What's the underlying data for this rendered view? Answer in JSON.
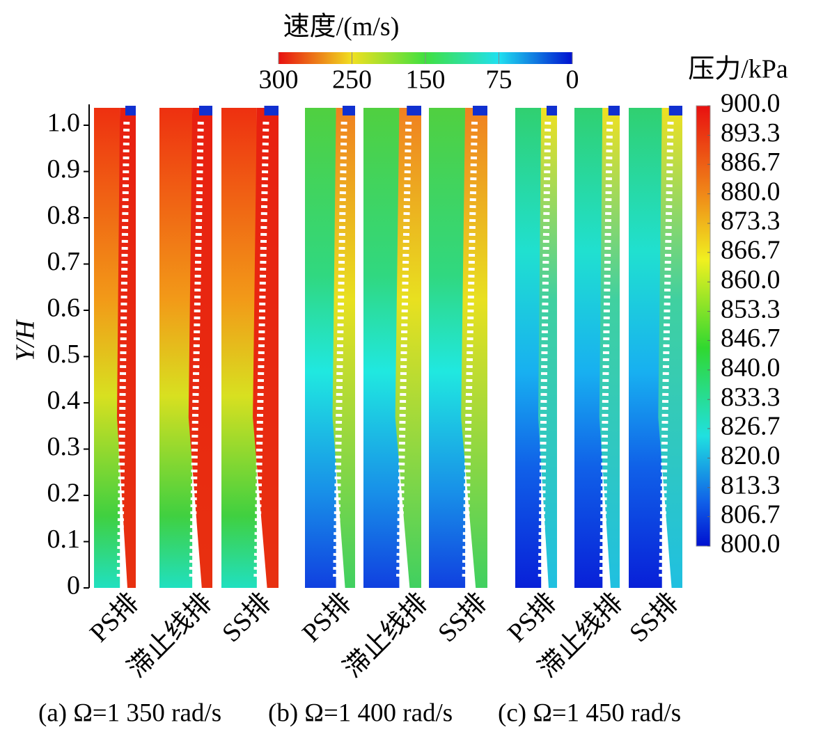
{
  "chart_data": {
    "type": "contour",
    "ylabel": "Y/H",
    "ylim": [
      0,
      1.04
    ],
    "yticks": [
      0,
      0.1,
      0.2,
      0.3,
      0.4,
      0.5,
      0.6,
      0.7,
      0.8,
      0.9,
      {
        "value": 1,
        "label": "1.0"
      }
    ],
    "velocity_colorbar": {
      "title": "速度/(m/s)",
      "ticks": [
        300,
        250,
        150,
        75,
        0
      ]
    },
    "pressure_colorbar": {
      "title": "压力/kPa",
      "lim": [
        800,
        900
      ],
      "ticks": [
        {
          "value": 900,
          "label": "900.0"
        },
        {
          "value": 893.3,
          "label": "893.3"
        },
        {
          "value": 886.7,
          "label": "886.7"
        },
        {
          "value": 880,
          "label": "880.0"
        },
        {
          "value": 873.3,
          "label": "873.3"
        },
        {
          "value": 866.7,
          "label": "866.7"
        },
        {
          "value": 860,
          "label": "860.0"
        },
        {
          "value": 853.3,
          "label": "853.3"
        },
        {
          "value": 846.7,
          "label": "846.7"
        },
        {
          "value": 840,
          "label": "840.0"
        },
        {
          "value": 833.3,
          "label": "833.3"
        },
        {
          "value": 826.7,
          "label": "826.7"
        },
        {
          "value": 820,
          "label": "820.0"
        },
        {
          "value": 813.3,
          "label": "813.3"
        },
        {
          "value": 806.7,
          "label": "806.7"
        },
        {
          "value": 800,
          "label": "800.0"
        }
      ]
    },
    "panels": [
      {
        "label": "(a) Ω=1 350 rad/s",
        "columns": [
          "PS排",
          "滞止线排",
          "SS排"
        ]
      },
      {
        "label": "(b) Ω=1 400 rad/s",
        "columns": [
          "PS排",
          "滞止线排",
          "SS排"
        ]
      },
      {
        "label": "(c) Ω=1 450 rad/s",
        "columns": [
          "PS排",
          "滞止线排",
          "SS排"
        ]
      }
    ]
  }
}
